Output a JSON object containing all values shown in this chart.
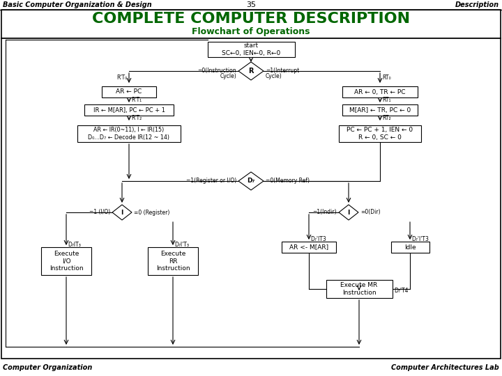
{
  "header_left": "Basic Computer Organization & Design",
  "header_center": "35",
  "header_right": "Description",
  "title": "COMPLETE COMPUTER DESCRIPTION",
  "subtitle": "Flowchart of Operations",
  "footer_left": "Computer Organization",
  "footer_right": "Computer Architectures Lab",
  "bg_color": "#ffffff",
  "title_color": "#006600",
  "subtitle_color": "#006600",
  "text_color": "#000000"
}
